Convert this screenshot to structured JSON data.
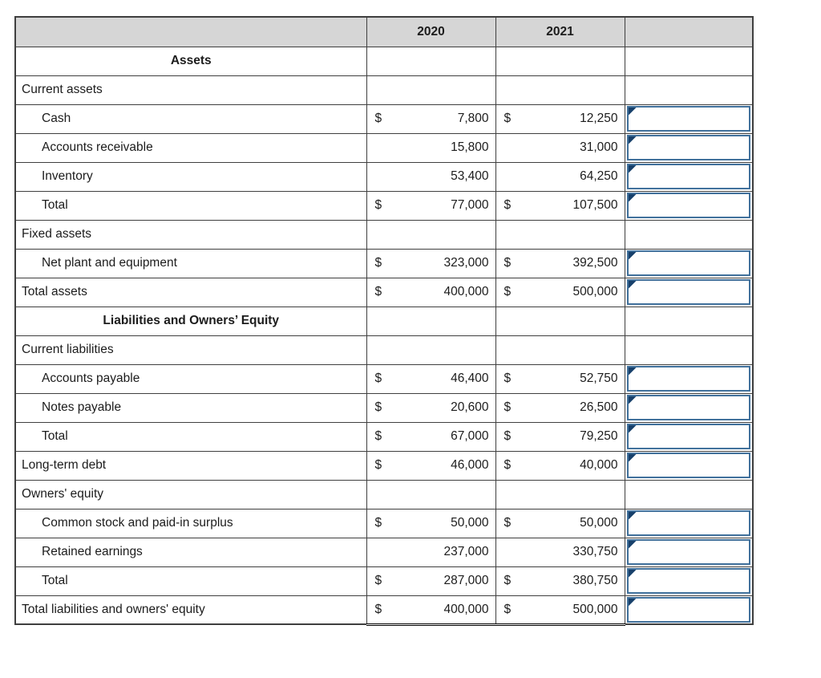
{
  "table": {
    "headers": {
      "blank": "",
      "year1": "2020",
      "year2": "2021",
      "answer": ""
    },
    "colors": {
      "header_bg": "#d6d6d6",
      "grid": "#3f3f3f",
      "input_border": "#41719c",
      "flag": "#17406b"
    },
    "rows": [
      {
        "label": "Assets",
        "center": true,
        "has_input": false
      },
      {
        "label": "Current assets",
        "indent": false,
        "has_input": false
      },
      {
        "label": "Cash",
        "indent": true,
        "d2020": "$",
        "v2020": "7,800",
        "d2021": "$",
        "v2021": "12,250",
        "has_input": true,
        "input_value": ""
      },
      {
        "label": "Accounts receivable",
        "indent": true,
        "d2020": "",
        "v2020": "15,800",
        "d2021": "",
        "v2021": "31,000",
        "has_input": true,
        "input_value": ""
      },
      {
        "label": "Inventory",
        "indent": true,
        "d2020": "",
        "v2020": "53,400",
        "d2021": "",
        "v2021": "64,250",
        "has_input": true,
        "input_value": ""
      },
      {
        "label": "Total",
        "indent": true,
        "d2020": "$",
        "v2020": "77,000",
        "d2021": "$",
        "v2021": "107,500",
        "has_input": true,
        "input_value": ""
      },
      {
        "label": "Fixed assets",
        "indent": false,
        "has_input": false
      },
      {
        "label": "Net plant and equipment",
        "indent": true,
        "d2020": "$",
        "v2020": "323,000",
        "d2021": "$",
        "v2021": "392,500",
        "has_input": true,
        "input_value": ""
      },
      {
        "label": "Total assets",
        "indent": false,
        "d2020": "$",
        "v2020": "400,000",
        "d2021": "$",
        "v2021": "500,000",
        "has_input": true,
        "input_value": ""
      },
      {
        "label": "Liabilities and Owners’ Equity",
        "center": true,
        "has_input": false
      },
      {
        "label": "Current liabilities",
        "indent": false,
        "has_input": false
      },
      {
        "label": "Accounts payable",
        "indent": true,
        "d2020": "$",
        "v2020": "46,400",
        "d2021": "$",
        "v2021": "52,750",
        "has_input": true,
        "input_value": ""
      },
      {
        "label": "Notes payable",
        "indent": true,
        "d2020": "$",
        "v2020": "20,600",
        "d2021": "$",
        "v2021": "26,500",
        "has_input": true,
        "input_value": ""
      },
      {
        "label": "Total",
        "indent": true,
        "d2020": "$",
        "v2020": "67,000",
        "d2021": "$",
        "v2021": "79,250",
        "has_input": true,
        "input_value": ""
      },
      {
        "label": "Long-term debt",
        "indent": false,
        "d2020": "$",
        "v2020": "46,000",
        "d2021": "$",
        "v2021": "40,000",
        "has_input": true,
        "input_value": ""
      },
      {
        "label": "Owners' equity",
        "indent": false,
        "has_input": false
      },
      {
        "label": "Common stock and paid-in surplus",
        "indent": true,
        "d2020": "$",
        "v2020": "50,000",
        "d2021": "$",
        "v2021": "50,000",
        "has_input": true,
        "input_value": ""
      },
      {
        "label": "Retained earnings",
        "indent": true,
        "d2020": "",
        "v2020": "237,000",
        "d2021": "",
        "v2021": "330,750",
        "has_input": true,
        "input_value": ""
      },
      {
        "label": "Total",
        "indent": true,
        "d2020": "$",
        "v2020": "287,000",
        "d2021": "$",
        "v2021": "380,750",
        "has_input": true,
        "input_value": ""
      },
      {
        "label": "Total liabilities and owners' equity",
        "indent": false,
        "d2020": "$",
        "v2020": "400,000",
        "d2021": "$",
        "v2021": "500,000",
        "has_input": true,
        "input_value": ""
      }
    ]
  }
}
